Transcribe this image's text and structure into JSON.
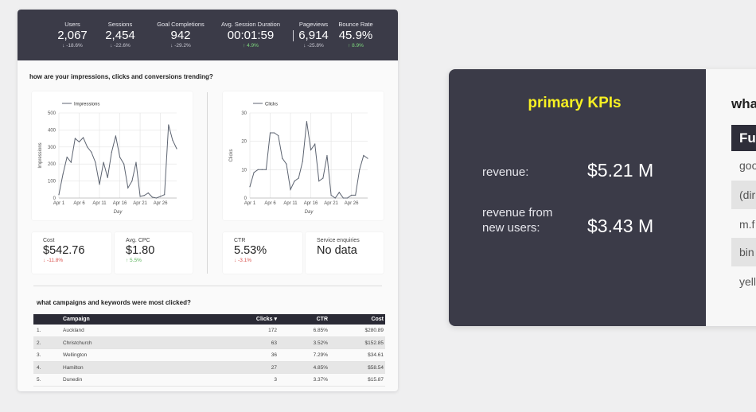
{
  "kpi_bar": [
    {
      "label": "Users",
      "value": "2,067",
      "delta": "↓ -18.6%",
      "direction": "down"
    },
    {
      "label": "Sessions",
      "value": "2,454",
      "delta": "↓ -22.6%",
      "direction": "down"
    },
    {
      "label": "Goal Completions",
      "value": "942",
      "delta": "↓ -29.2%",
      "direction": "down"
    },
    {
      "label": "Avg. Session Duration",
      "value": "00:01:59",
      "delta": "↑ 4.9%",
      "direction": "up"
    },
    {
      "label": "Pageviews",
      "value": "6,914",
      "delta": "↓ -25.8%",
      "direction": "down"
    },
    {
      "label": "Bounce Rate",
      "value": "45.9%",
      "delta": "↑ 8.9%",
      "direction": "up"
    }
  ],
  "trend_section": {
    "title": "how are your impressions, clicks and conversions trending?"
  },
  "chart_data": [
    {
      "type": "line",
      "legend": "Impressions",
      "xlabel": "Day",
      "ylabel": "Impressions",
      "ylim": [
        0,
        500
      ],
      "yticks": [
        0,
        100,
        200,
        300,
        400,
        500
      ],
      "xtick_labels": [
        "Apr 1",
        "Apr 6",
        "Apr 11",
        "Apr 16",
        "Apr 21",
        "Apr 26"
      ],
      "x": [
        1,
        2,
        3,
        4,
        5,
        6,
        7,
        8,
        9,
        10,
        11,
        12,
        13,
        14,
        15,
        16,
        17,
        18,
        19,
        20,
        21,
        22,
        23,
        24,
        25,
        26,
        27,
        28,
        29,
        30
      ],
      "values": [
        20,
        140,
        240,
        210,
        350,
        330,
        355,
        300,
        270,
        210,
        80,
        210,
        120,
        270,
        365,
        240,
        200,
        60,
        100,
        210,
        10,
        15,
        30,
        5,
        0,
        10,
        20,
        430,
        340,
        290
      ]
    },
    {
      "type": "line",
      "legend": "Clicks",
      "xlabel": "Day",
      "ylabel": "Clicks",
      "ylim": [
        0,
        30
      ],
      "yticks": [
        0,
        10,
        20,
        30
      ],
      "xtick_labels": [
        "Apr 1",
        "Apr 6",
        "Apr 11",
        "Apr 16",
        "Apr 21",
        "Apr 26"
      ],
      "x": [
        1,
        2,
        3,
        4,
        5,
        6,
        7,
        8,
        9,
        10,
        11,
        12,
        13,
        14,
        15,
        16,
        17,
        18,
        19,
        20,
        21,
        22,
        23,
        24,
        25,
        26,
        27,
        28,
        29,
        30
      ],
      "values": [
        4,
        9,
        10,
        10,
        10,
        23,
        23,
        22,
        14,
        12,
        3,
        6,
        7,
        13,
        27,
        17,
        19,
        6,
        7,
        15,
        1,
        0,
        2,
        0,
        0,
        1,
        1,
        10,
        15,
        14
      ]
    }
  ],
  "stats": [
    {
      "label": "Cost",
      "value": "$542.76",
      "delta": "↓ -11.8%",
      "direction": "down"
    },
    {
      "label": "Avg. CPC",
      "value": "$1.80",
      "delta": "↑ 5.5%",
      "direction": "up"
    },
    {
      "label": "CTR",
      "value": "5.53%",
      "delta": "↓ -3.1%",
      "direction": "down"
    },
    {
      "label": "Service enquiries",
      "value": "No data",
      "delta": "",
      "direction": "none"
    }
  ],
  "campaign_section": {
    "title": "what campaigns and keywords were most clicked?"
  },
  "table": {
    "headers": {
      "campaign": "Campaign",
      "clicks": "Clicks ▾",
      "ctr": "CTR",
      "cost": "Cost"
    },
    "rows": [
      {
        "num": "1.",
        "campaign": "Auckland",
        "clicks": "172",
        "ctr": "6.85%",
        "cost": "$280.89"
      },
      {
        "num": "2.",
        "campaign": "Christchurch",
        "clicks": "63",
        "ctr": "3.52%",
        "cost": "$152.85"
      },
      {
        "num": "3.",
        "campaign": "Wellington",
        "clicks": "36",
        "ctr": "7.29%",
        "cost": "$34.61"
      },
      {
        "num": "4.",
        "campaign": "Hamilton",
        "clicks": "27",
        "ctr": "4.85%",
        "cost": "$58.54"
      },
      {
        "num": "5.",
        "campaign": "Dunedin",
        "clicks": "3",
        "ctr": "3.37%",
        "cost": "$15.87"
      }
    ]
  },
  "primary_kpis": {
    "title": "primary KPIs",
    "revenue_label": "revenue:",
    "revenue_value": "$5.21 M",
    "new_users_label_line1": "revenue from",
    "new_users_label_line2": "new users:",
    "new_users_value": "$3.43 M"
  },
  "side_table": {
    "title": "wha",
    "header": "Fu",
    "rows": [
      "goo",
      "(dir",
      "m.f",
      "bin",
      "yell"
    ]
  },
  "colors": {
    "dark_panel": "#3b3b48",
    "accent_yellow": "#f7f023",
    "positive": "#59b359",
    "negative": "#d9534f",
    "line": "#5c6370"
  }
}
